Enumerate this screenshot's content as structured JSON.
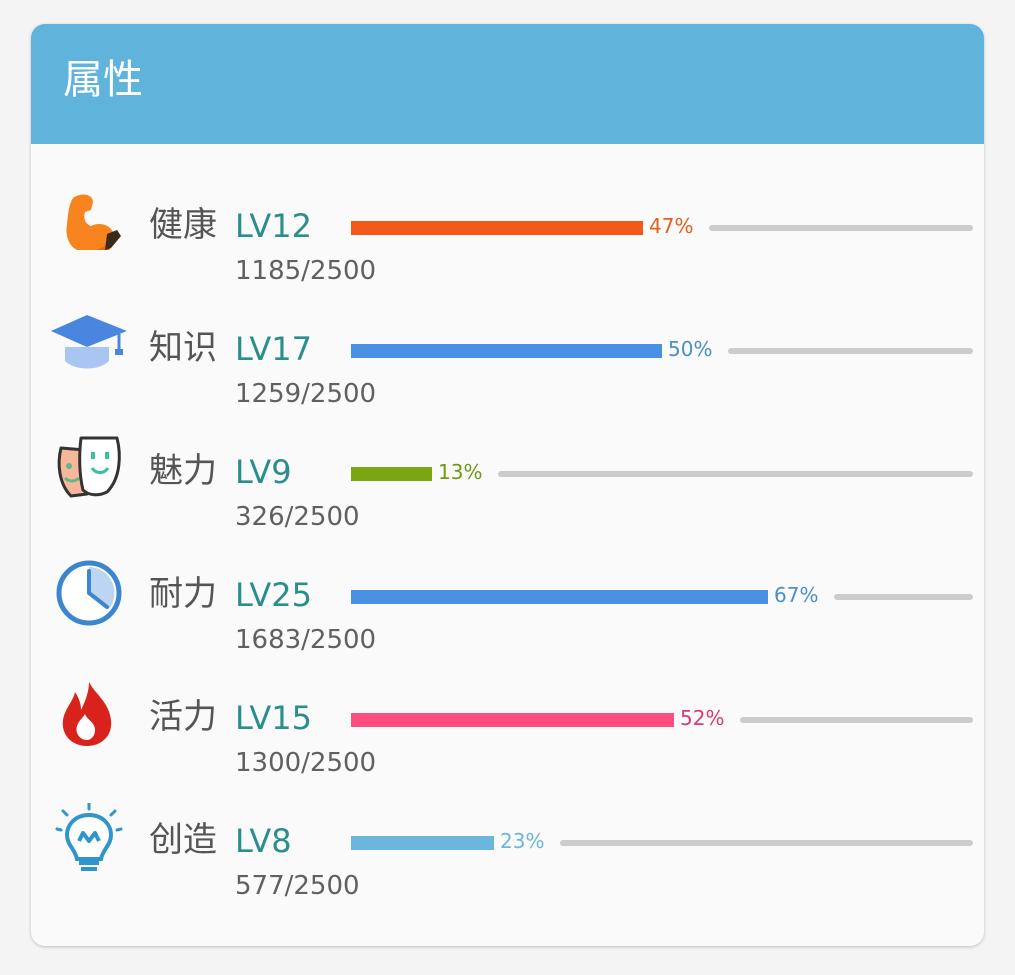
{
  "card": {
    "title": "属性"
  },
  "attributes": [
    {
      "name": "健康",
      "level": "LV12",
      "exp": "1185/2500",
      "percent_label": "47%",
      "progress": 0.47,
      "color": "#f25a1c",
      "icon": "flexed-biceps-icon"
    },
    {
      "name": "知识",
      "level": "LV17",
      "exp": "1259/2500",
      "percent_label": "50%",
      "progress": 0.5,
      "color": "#4a90e2",
      "icon": "graduation-cap-icon"
    },
    {
      "name": "魅力",
      "level": "LV9",
      "exp": "326/2500",
      "percent_label": "13%",
      "progress": 0.13,
      "color": "#7aa612",
      "icon": "masks-icon"
    },
    {
      "name": "耐力",
      "level": "LV25",
      "exp": "1683/2500",
      "percent_label": "67%",
      "progress": 0.67,
      "color": "#4a90e2",
      "icon": "timer-icon"
    },
    {
      "name": "活力",
      "level": "LV15",
      "exp": "1300/2500",
      "percent_label": "52%",
      "progress": 0.52,
      "color": "#ff4d82",
      "icon": "flame-icon"
    },
    {
      "name": "创造",
      "level": "LV8",
      "exp": "577/2500",
      "percent_label": "23%",
      "progress": 0.23,
      "color": "#6bb6dc",
      "icon": "lightbulb-icon"
    }
  ],
  "colors": {
    "header": "#60b4db",
    "level_text": "#2a8f8b",
    "track": "#cccccc",
    "pct_text": [
      "#e0611f",
      "#4a90c8",
      "#6e9a10",
      "#4a90c8",
      "#d23d78",
      "#6bb6dc"
    ]
  }
}
